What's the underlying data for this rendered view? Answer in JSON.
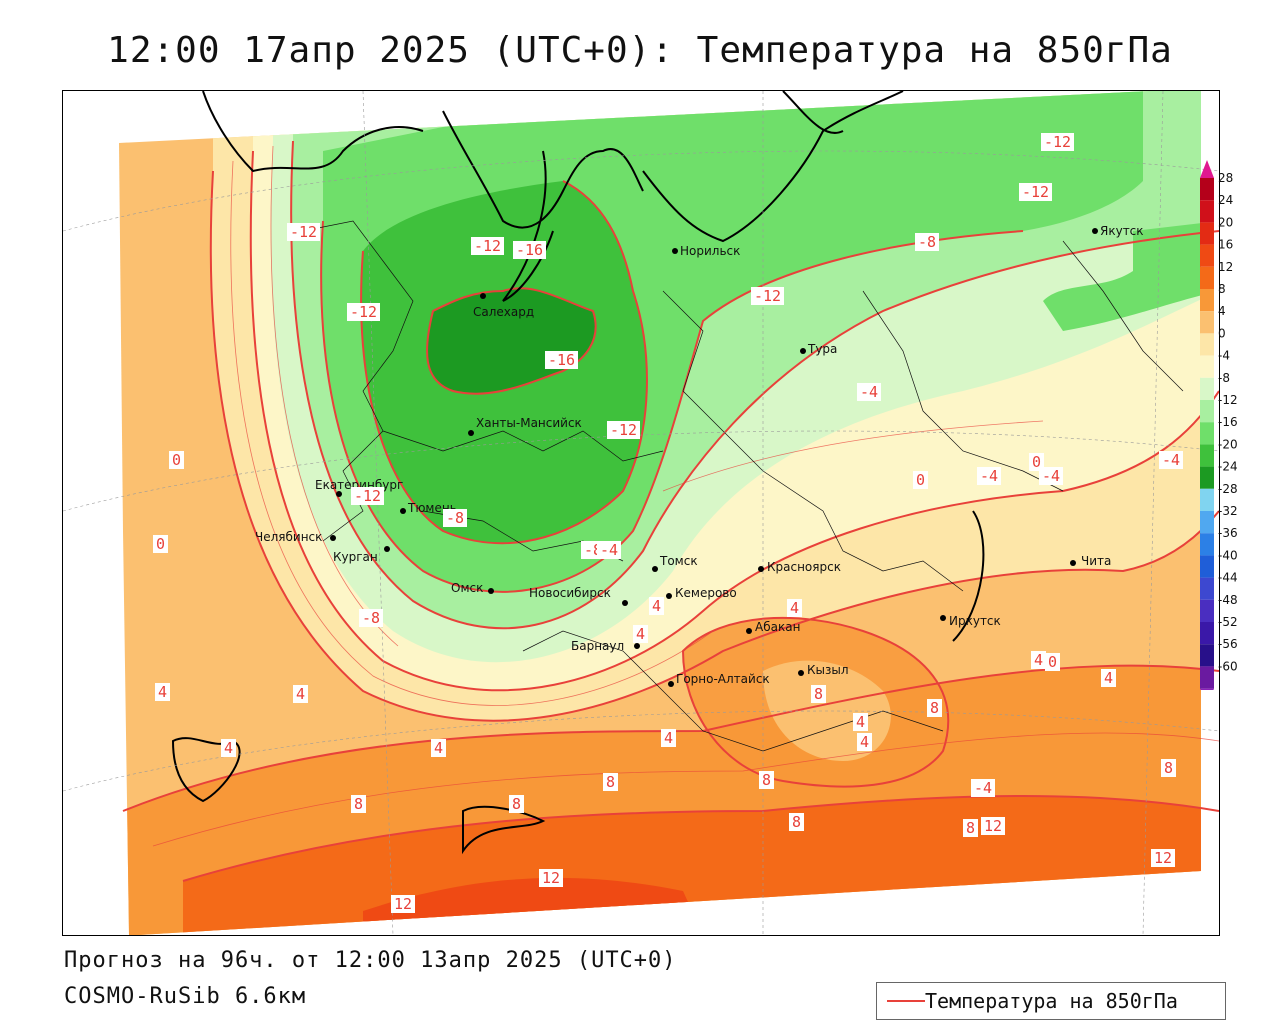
{
  "title": "12:00 17апр 2025 (UTC+0): Температура на 850гПа",
  "footer": {
    "forecast": "Прогноз на 96ч. от 12:00 13апр 2025 (UTC+0)",
    "model": "COSMO-RuSib 6.6км"
  },
  "legend": {
    "label": "Температура на 850гПа",
    "line_color": "#e8413a"
  },
  "colorbar": {
    "ticks": [
      "28",
      "24",
      "20",
      "16",
      "12",
      "8",
      "4",
      "0",
      "-4",
      "-8",
      "-12",
      "-16",
      "-20",
      "-24",
      "-28",
      "-32",
      "-36",
      "-40",
      "-44",
      "-48",
      "-52",
      "-56",
      "-60"
    ],
    "colors": [
      "#b4001a",
      "#d0101a",
      "#e32b14",
      "#ef4a14",
      "#f46a18",
      "#f89838",
      "#fbc070",
      "#fde6a8",
      "#fdf6c8",
      "#d8f7c8",
      "#a8efa0",
      "#6fdf6a",
      "#3fc13c",
      "#1c9a22",
      "#80d4f0",
      "#50a8f0",
      "#2c80e6",
      "#1f5ed8",
      "#3d48d0",
      "#4a2ec0",
      "#3a18a8",
      "#28108a",
      "#6a1aa0"
    ]
  },
  "cities": [
    {
      "name": "Норильск"
    },
    {
      "name": "Якутск"
    },
    {
      "name": "Салехард"
    },
    {
      "name": "Тура"
    },
    {
      "name": "Ханты-Мансийск"
    },
    {
      "name": "Екатеринбург"
    },
    {
      "name": "Тюмень"
    },
    {
      "name": "Челябинск"
    },
    {
      "name": "Курган"
    },
    {
      "name": "Омск"
    },
    {
      "name": "Томск"
    },
    {
      "name": "Новосибирск"
    },
    {
      "name": "Кемерово"
    },
    {
      "name": "Красноярск"
    },
    {
      "name": "Барнаул"
    },
    {
      "name": "Абакан"
    },
    {
      "name": "Иркутск"
    },
    {
      "name": "Чита"
    },
    {
      "name": "Горно-Алтайск"
    },
    {
      "name": "Кызыл"
    }
  ],
  "isotherm_labels": [
    "-12",
    "-12",
    "-12",
    "-8",
    "-12",
    "-12",
    "-16",
    "-16",
    "-12",
    "-12",
    "-8",
    "-8",
    "-4",
    "-4",
    "-4",
    "-4",
    "-4",
    "-12",
    "0",
    "0",
    "0",
    "0",
    "4",
    "4",
    "4",
    "4",
    "4",
    "4",
    "4",
    "8",
    "8",
    "8",
    "8",
    "8",
    "8",
    "8",
    "12",
    "12",
    "12",
    "12",
    "4",
    "-8",
    "4",
    "4",
    "4",
    "8",
    "8",
    "-4",
    "0",
    "4"
  ],
  "colors": {
    "isoline": "#e8413a",
    "border": "#000000"
  }
}
